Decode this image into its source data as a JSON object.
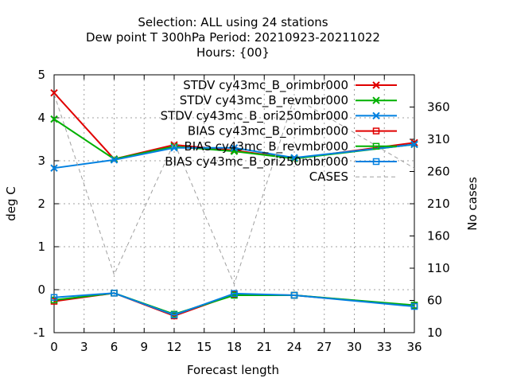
{
  "chart_data": {
    "type": "line",
    "title": [
      "Selection: ALL using    24 stations",
      "Dew point T 300hPa   Period: 20210923-20211022",
      "Hours: {00}"
    ],
    "xlabel": "Forecast length",
    "ylabel": "deg C",
    "y2label": "No cases",
    "xlim": [
      0,
      36
    ],
    "ylim": [
      -1,
      5
    ],
    "y2lim": [
      10,
      410
    ],
    "xticks": [
      0,
      3,
      6,
      9,
      12,
      15,
      18,
      21,
      24,
      27,
      30,
      33,
      36
    ],
    "yticks": [
      -1,
      0,
      1,
      2,
      3,
      4,
      5
    ],
    "y2ticks": [
      10,
      60,
      110,
      160,
      210,
      260,
      310,
      360
    ],
    "grid": true,
    "legend_position": "top-right",
    "x": [
      0,
      6,
      12,
      18,
      24,
      36
    ],
    "series": [
      {
        "name": "STDV cy43mc_B_orimbr000",
        "color": "#e00000",
        "marker": "x",
        "axis": "y",
        "values": [
          4.58,
          3.04,
          3.37,
          3.24,
          3.05,
          3.42
        ]
      },
      {
        "name": "STDV cy43mc_B_revmbr000",
        "color": "#00b000",
        "marker": "x",
        "axis": "y",
        "values": [
          3.97,
          3.04,
          3.33,
          3.22,
          3.05,
          3.38
        ]
      },
      {
        "name": "STDV cy43mc_B_ori250mbr000",
        "color": "#0080e0",
        "marker": "x",
        "axis": "y",
        "values": [
          2.83,
          3.02,
          3.3,
          3.3,
          3.07,
          3.38
        ]
      },
      {
        "name": "BIAS cy43mc_B_orimbr000",
        "color": "#e00000",
        "marker": "square",
        "axis": "y",
        "values": [
          -0.27,
          -0.08,
          -0.61,
          -0.11,
          -0.13,
          -0.37
        ]
      },
      {
        "name": "BIAS cy43mc_B_revmbr000",
        "color": "#00b000",
        "marker": "square",
        "axis": "y",
        "values": [
          -0.24,
          -0.08,
          -0.57,
          -0.13,
          -0.13,
          -0.36
        ]
      },
      {
        "name": "BIAS cy43mc_B_ori250mbr000",
        "color": "#0080e0",
        "marker": "square",
        "axis": "y",
        "values": [
          -0.18,
          -0.08,
          -0.59,
          -0.09,
          -0.13,
          -0.39
        ]
      },
      {
        "name": "CASES",
        "color": "#a0a0a0",
        "marker": "none",
        "dashed": true,
        "axis": "y2",
        "values": [
          380,
          100,
          305,
          85,
          375,
          265
        ]
      }
    ]
  }
}
